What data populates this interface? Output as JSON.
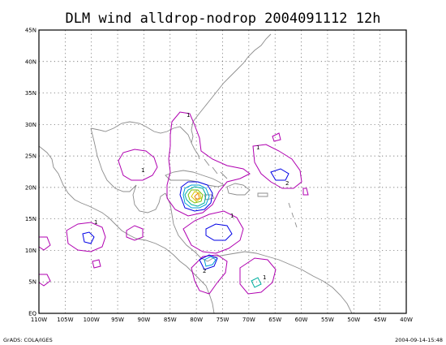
{
  "title": "DLM wind alldrop-nodrop 2004091112 12h",
  "footer_left": "GrADS: COLA/IGES",
  "footer_right": "2004-09-14-15:48",
  "x_ticks": [
    "110W",
    "105W",
    "100W",
    "95W",
    "90W",
    "85W",
    "80W",
    "75W",
    "70W",
    "65W",
    "60W",
    "55W",
    "50W",
    "45W",
    "40W"
  ],
  "y_ticks": [
    "EQ",
    "5N",
    "10N",
    "15N",
    "20N",
    "25N",
    "30N",
    "35N",
    "40N",
    "45N"
  ],
  "contour_labels": [
    "1",
    "1",
    "1",
    "1",
    "1",
    "2",
    "2",
    "1"
  ],
  "colors": {
    "c1": "#b000b0",
    "c2": "#0000e6",
    "c3": "#00a0d8",
    "c4": "#00b0a0",
    "c5": "#7cc000",
    "c6": "#d8c800",
    "c7": "#f08a00",
    "coast": "#8c8c8c"
  }
}
